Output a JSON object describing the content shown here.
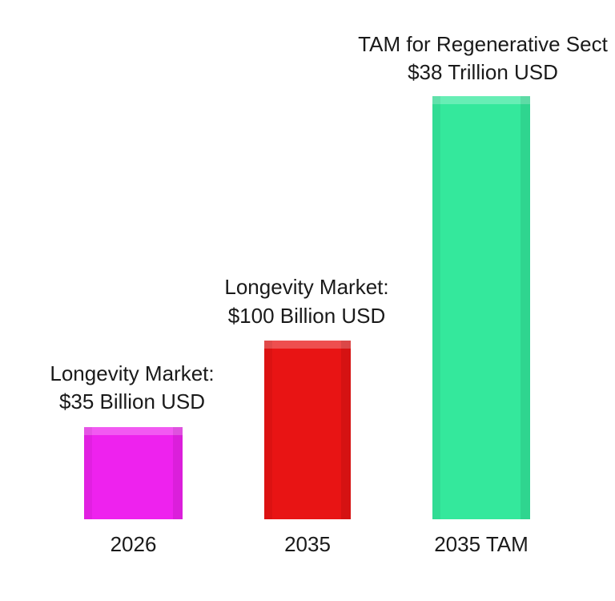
{
  "bars": [
    {
      "label": [
        "Longevity Market:",
        "$35 Billion USD"
      ],
      "category": "2026",
      "color": "#ee22ee"
    },
    {
      "label": [
        "Longevity Market:",
        "$100 Billion USD"
      ],
      "category": "2035",
      "color": "#e81414"
    },
    {
      "label": [
        "TAM for Regenerative Sect",
        "$38 Trillion USD"
      ],
      "category": "2035 TAM",
      "color": "#34e89c"
    }
  ]
}
